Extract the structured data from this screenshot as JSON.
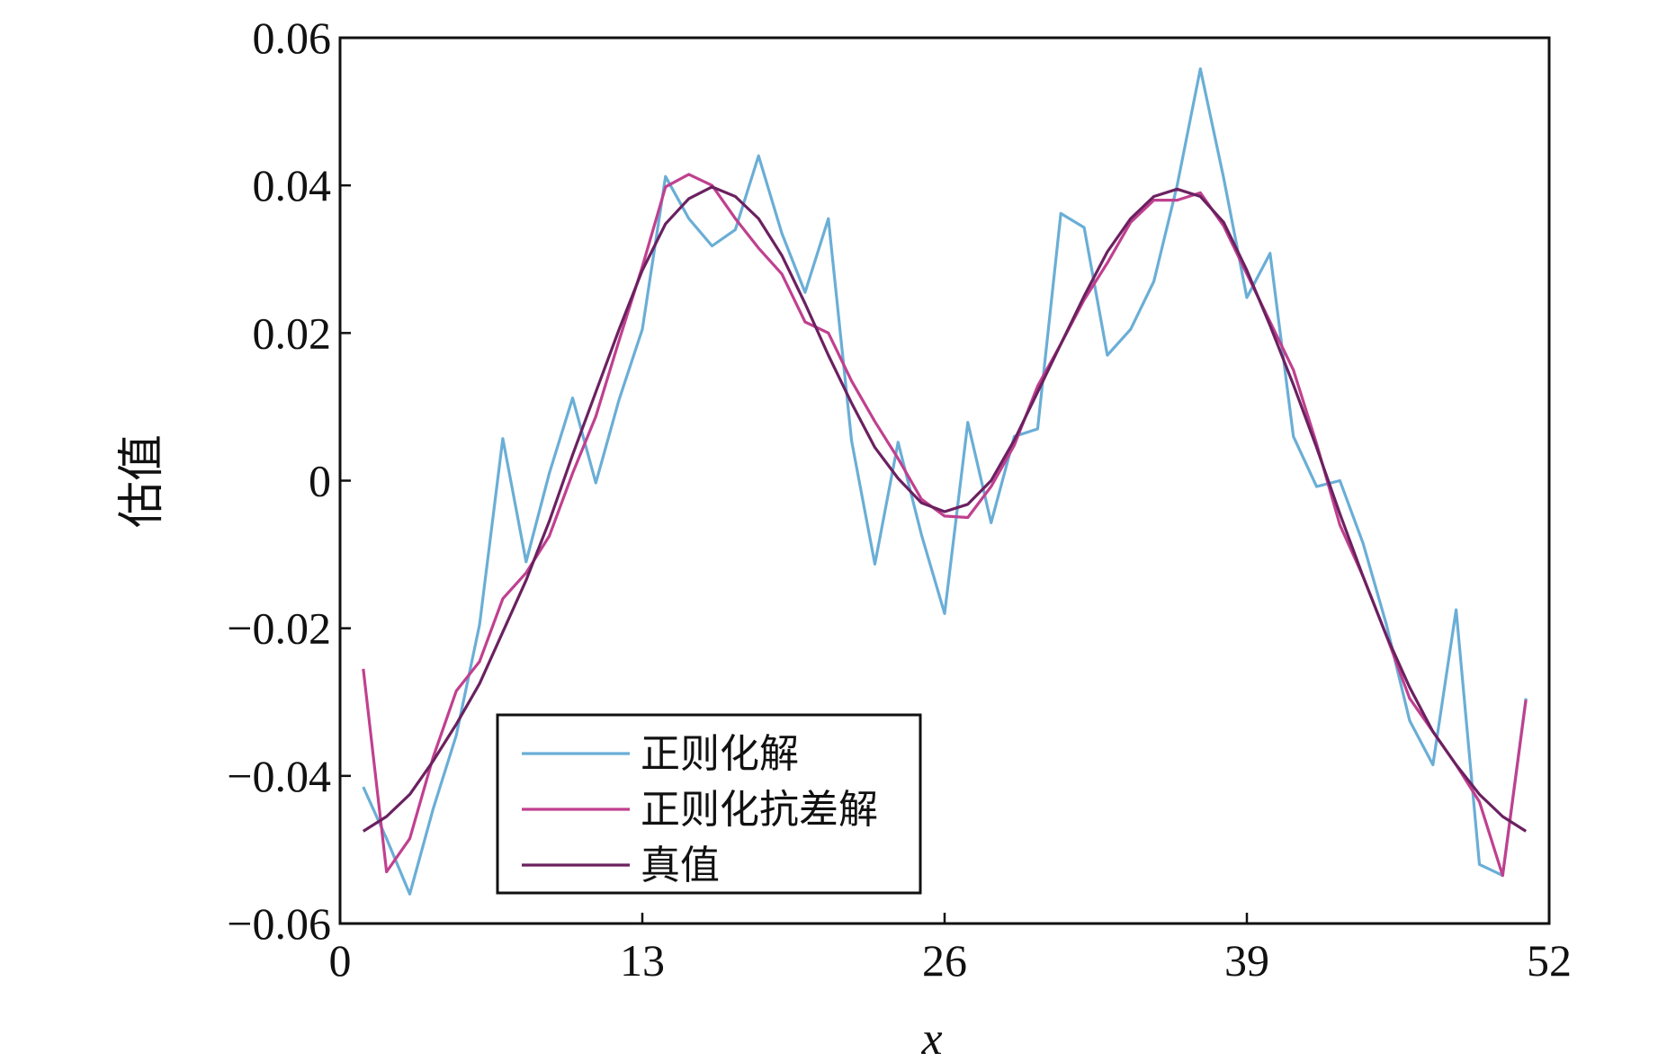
{
  "chart_data": {
    "type": "line",
    "xlabel": "x",
    "ylabel": "估值",
    "xlim": [
      0,
      52
    ],
    "ylim": [
      -0.06,
      0.06
    ],
    "xticks": [
      0,
      13,
      26,
      39,
      52
    ],
    "xtick_labels": [
      "0",
      "13",
      "26",
      "39",
      "52"
    ],
    "yticks": [
      0.06,
      0.04,
      0.02,
      0,
      -0.02,
      -0.04,
      -0.06
    ],
    "ytick_labels": [
      "0.06",
      "0.04",
      "0.02",
      "0",
      "−0.02",
      "−0.04",
      "−0.06"
    ],
    "grid": false,
    "legend_position": "bottom-left",
    "series": [
      {
        "name": "正则化解",
        "color": "#6aaed6",
        "x": [
          1,
          2,
          3,
          4,
          5,
          6,
          7,
          8,
          9,
          10,
          11,
          12,
          13,
          14,
          15,
          16,
          17,
          18,
          19,
          20,
          21,
          22,
          23,
          24,
          25,
          26,
          27,
          28,
          29,
          30,
          31,
          32,
          33,
          34,
          35,
          36,
          37,
          38,
          39,
          40,
          41,
          42,
          43,
          44,
          45,
          46,
          47,
          48,
          49,
          50,
          51
        ],
        "y": [
          -0.0415,
          -0.0485,
          -0.056,
          -0.0445,
          -0.0345,
          -0.0195,
          0.0057,
          -0.011,
          0.001,
          0.0112,
          -0.0003,
          0.011,
          0.0205,
          0.0412,
          0.0355,
          0.0318,
          0.034,
          0.044,
          0.0335,
          0.0255,
          0.0355,
          0.0054,
          -0.0113,
          0.0052,
          -0.0073,
          -0.018,
          0.0079,
          -0.0057,
          0.006,
          0.007,
          0.0362,
          0.0343,
          0.017,
          0.0205,
          0.027,
          0.04,
          0.0558,
          0.041,
          0.0248,
          0.0308,
          0.006,
          -0.0008,
          0.0,
          -0.0085,
          -0.0195,
          -0.0325,
          -0.0385,
          -0.0175,
          -0.052,
          -0.0535,
          -0.0295
        ]
      },
      {
        "name": "正则化抗差解",
        "color": "#c0408f",
        "x": [
          1,
          2,
          3,
          4,
          5,
          6,
          7,
          8,
          9,
          10,
          11,
          12,
          13,
          14,
          15,
          16,
          17,
          18,
          19,
          20,
          21,
          22,
          23,
          24,
          25,
          26,
          27,
          28,
          29,
          30,
          31,
          32,
          33,
          34,
          35,
          36,
          37,
          38,
          39,
          40,
          41,
          42,
          43,
          44,
          45,
          46,
          47,
          48,
          49,
          50,
          51
        ],
        "y": [
          -0.0255,
          -0.053,
          -0.0485,
          -0.0375,
          -0.0285,
          -0.0245,
          -0.016,
          -0.0125,
          -0.0075,
          0.001,
          0.0087,
          0.019,
          0.029,
          0.0398,
          0.0415,
          0.04,
          0.0355,
          0.0315,
          0.028,
          0.0215,
          0.02,
          0.0135,
          0.008,
          0.003,
          -0.0025,
          -0.0048,
          -0.005,
          -0.0008,
          0.0048,
          0.0128,
          0.0185,
          0.0245,
          0.0295,
          0.035,
          0.038,
          0.038,
          0.039,
          0.0345,
          0.028,
          0.0215,
          0.015,
          0.005,
          -0.006,
          -0.013,
          -0.021,
          -0.0295,
          -0.034,
          -0.0385,
          -0.0435,
          -0.0535,
          -0.0297
        ]
      },
      {
        "name": "真值",
        "color": "#6b2160",
        "x": [
          1,
          2,
          3,
          4,
          5,
          6,
          7,
          8,
          9,
          10,
          11,
          12,
          13,
          14,
          15,
          16,
          17,
          18,
          19,
          20,
          21,
          22,
          23,
          24,
          25,
          26,
          27,
          28,
          29,
          30,
          31,
          32,
          33,
          34,
          35,
          36,
          37,
          38,
          39,
          40,
          41,
          42,
          43,
          44,
          45,
          46,
          47,
          48,
          49,
          50,
          51
        ],
        "y": [
          -0.0475,
          -0.0455,
          -0.0425,
          -0.038,
          -0.033,
          -0.0275,
          -0.0205,
          -0.0135,
          -0.0055,
          0.0035,
          0.012,
          0.0205,
          0.0285,
          0.0348,
          0.0382,
          0.0398,
          0.0385,
          0.0355,
          0.0305,
          0.024,
          0.017,
          0.0105,
          0.0045,
          0.0003,
          -0.003,
          -0.0042,
          -0.0032,
          0.0,
          0.0055,
          0.012,
          0.0185,
          0.025,
          0.031,
          0.0355,
          0.0385,
          0.0395,
          0.0385,
          0.035,
          0.0285,
          0.021,
          0.013,
          0.0045,
          -0.0045,
          -0.013,
          -0.021,
          -0.028,
          -0.034,
          -0.0385,
          -0.0425,
          -0.0455,
          -0.0475
        ]
      }
    ]
  }
}
